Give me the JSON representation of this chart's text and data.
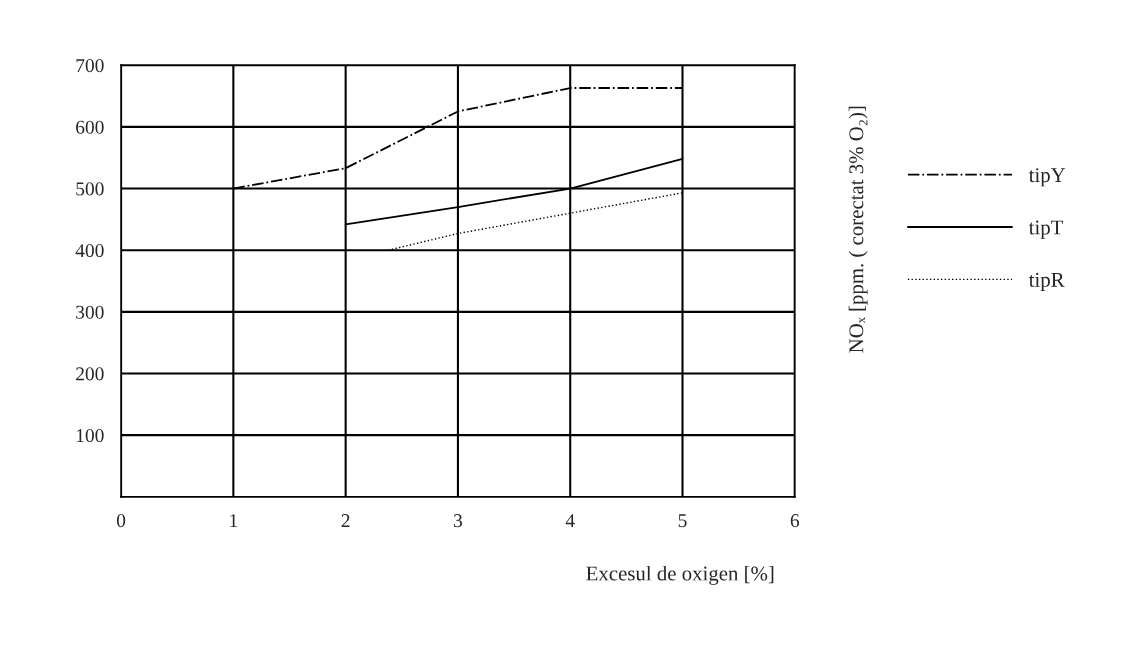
{
  "chart_data": {
    "type": "line",
    "xlabel": "Excesul de oxigen [%]",
    "ylabel": "NOₓ [ppm. ( corectat 3% O₂)]",
    "xlim": [
      0,
      6
    ],
    "xticks": [
      0,
      1,
      2,
      3,
      4,
      5,
      6
    ],
    "ylim": [
      0,
      700
    ],
    "yticks": [
      100,
      200,
      300,
      400,
      500,
      600,
      700
    ],
    "grid": true,
    "legend": "right",
    "marker": "none",
    "series": [
      {
        "name": "tipY",
        "color": "#000000",
        "line_style": "dashdot",
        "x": [
          1,
          2,
          3,
          4,
          5
        ],
        "values": [
          500,
          533,
          625,
          663,
          663
        ]
      },
      {
        "name": "tipT",
        "color": "#000000",
        "line_style": "solid",
        "x": [
          2,
          3,
          4,
          5
        ],
        "values": [
          442,
          470,
          500,
          548
        ]
      },
      {
        "name": "tipR",
        "color": "#000000",
        "line_style": "dotted",
        "x": [
          2.38,
          3,
          4,
          5
        ],
        "values": [
          400,
          427,
          460,
          493
        ]
      }
    ]
  }
}
